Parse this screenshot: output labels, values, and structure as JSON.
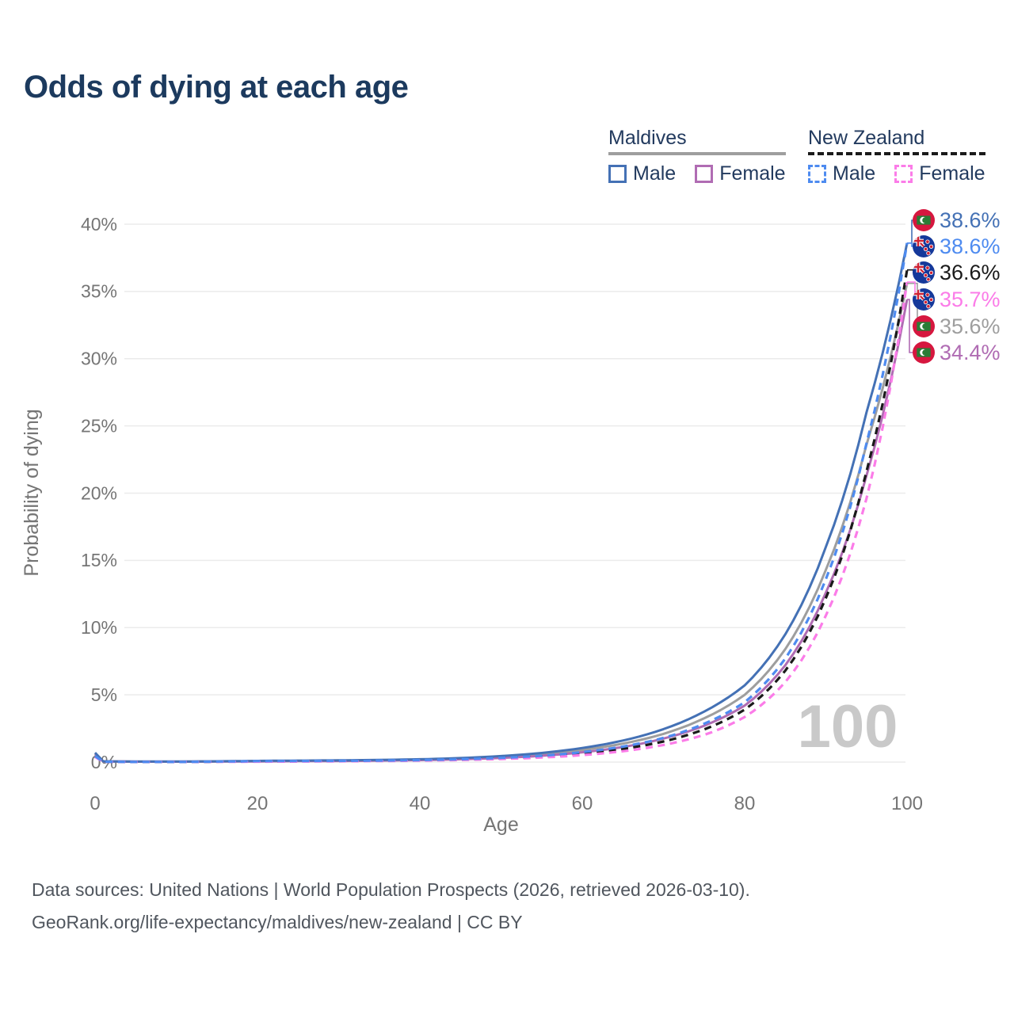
{
  "title": "Odds of dying at each age",
  "legend": {
    "groups": [
      {
        "name": "Maldives",
        "underline_style": "solid",
        "underline_color": "#9e9e9e",
        "items": [
          {
            "label": "Male",
            "color": "#4471b5",
            "line_style": "solid"
          },
          {
            "label": "Female",
            "color": "#b06cb3",
            "line_style": "solid"
          }
        ]
      },
      {
        "name": "New Zealand",
        "underline_style": "dashed",
        "underline_color": "#1a1a1a",
        "items": [
          {
            "label": "Male",
            "color": "#4e8bf0",
            "line_style": "dashed"
          },
          {
            "label": "Female",
            "color": "#fb7ce8",
            "line_style": "dashed"
          }
        ]
      }
    ]
  },
  "chart_data": {
    "type": "line",
    "title": "Odds of dying at each age",
    "xlabel": "Age",
    "ylabel": "Probability of dying",
    "xlim": [
      0,
      100
    ],
    "ylim": [
      0,
      40
    ],
    "grid": "horizontal",
    "legend_position": "top-right",
    "watermark": "100",
    "x_ticks": [
      {
        "v": 0,
        "label": "0"
      },
      {
        "v": 20,
        "label": "20"
      },
      {
        "v": 40,
        "label": "40"
      },
      {
        "v": 60,
        "label": "60"
      },
      {
        "v": 80,
        "label": "80"
      },
      {
        "v": 100,
        "label": "100"
      }
    ],
    "y_ticks": [
      {
        "v": 0,
        "label": "0%"
      },
      {
        "v": 5,
        "label": "5%"
      },
      {
        "v": 10,
        "label": "10%"
      },
      {
        "v": 15,
        "label": "15%"
      },
      {
        "v": 20,
        "label": "20%"
      },
      {
        "v": 25,
        "label": "25%"
      },
      {
        "v": 30,
        "label": "30%"
      },
      {
        "v": 35,
        "label": "35%"
      },
      {
        "v": 40,
        "label": "40%"
      }
    ],
    "ages": [
      0,
      1,
      5,
      10,
      15,
      20,
      25,
      30,
      35,
      40,
      45,
      50,
      55,
      60,
      65,
      70,
      75,
      80,
      85,
      90,
      95,
      100
    ],
    "series": [
      {
        "name": "Maldives Both sexes",
        "country": "Maldives",
        "sex": "Both",
        "flag": "maldives",
        "color": "#9e9e9e",
        "line_style": "solid",
        "end_label": "35.6%",
        "label_row": 4,
        "values": [
          0.63,
          0.05,
          0.03,
          0.03,
          0.05,
          0.07,
          0.09,
          0.11,
          0.13,
          0.18,
          0.26,
          0.38,
          0.58,
          0.9,
          1.37,
          2.1,
          3.25,
          5.0,
          8.4,
          14.3,
          23.6,
          35.6
        ]
      },
      {
        "name": "Maldives Female",
        "country": "Maldives",
        "sex": "Female",
        "flag": "maldives",
        "color": "#b06cb3",
        "line_style": "solid",
        "end_label": "34.4%",
        "label_row": 5,
        "values": [
          0.55,
          0.05,
          0.03,
          0.03,
          0.04,
          0.05,
          0.07,
          0.08,
          0.11,
          0.15,
          0.21,
          0.31,
          0.47,
          0.73,
          1.12,
          1.75,
          2.7,
          4.2,
          7.2,
          12.6,
          21.3,
          34.4
        ]
      },
      {
        "name": "Maldives Male",
        "country": "Maldives",
        "sex": "Male",
        "flag": "maldives",
        "color": "#4471b5",
        "line_style": "solid",
        "end_label": "38.6%",
        "label_row": 0,
        "values": [
          0.7,
          0.06,
          0.04,
          0.04,
          0.06,
          0.09,
          0.11,
          0.13,
          0.16,
          0.21,
          0.3,
          0.45,
          0.68,
          1.05,
          1.6,
          2.45,
          3.75,
          5.7,
          9.5,
          16.0,
          26.0,
          38.6
        ]
      },
      {
        "name": "New Zealand Both sexes",
        "country": "New Zealand",
        "sex": "Both",
        "flag": "new-zealand",
        "color": "#1a1a1a",
        "line_style": "dashed",
        "end_label": "36.6%",
        "label_row": 2,
        "values": [
          0.42,
          0.03,
          0.01,
          0.01,
          0.03,
          0.05,
          0.06,
          0.08,
          0.1,
          0.13,
          0.19,
          0.27,
          0.4,
          0.63,
          0.98,
          1.53,
          2.43,
          3.9,
          6.8,
          12.2,
          21.6,
          36.6
        ]
      },
      {
        "name": "New Zealand Female",
        "country": "New Zealand",
        "sex": "Female",
        "flag": "new-zealand",
        "color": "#fb7ce8",
        "line_style": "dashed",
        "end_label": "35.7%",
        "label_row": 3,
        "values": [
          0.38,
          0.02,
          0.01,
          0.01,
          0.02,
          0.03,
          0.04,
          0.06,
          0.08,
          0.11,
          0.16,
          0.23,
          0.34,
          0.52,
          0.81,
          1.27,
          2.02,
          3.35,
          5.95,
          10.9,
          19.6,
          35.7
        ]
      },
      {
        "name": "New Zealand Male",
        "country": "New Zealand",
        "sex": "Male",
        "flag": "new-zealand",
        "color": "#4e8bf0",
        "line_style": "dashed",
        "end_label": "38.6%",
        "label_row": 1,
        "values": [
          0.45,
          0.03,
          0.01,
          0.01,
          0.04,
          0.07,
          0.08,
          0.09,
          0.11,
          0.15,
          0.21,
          0.31,
          0.47,
          0.74,
          1.15,
          1.8,
          2.85,
          4.45,
          7.7,
          13.6,
          23.7,
          38.6
        ]
      }
    ],
    "colors": {
      "grid": "#ebebeb",
      "tick_text": "#757575",
      "watermark": "#c9c9c9",
      "maldives_flag_red": "#d6173f",
      "maldives_flag_green": "#2a7d36",
      "nz_flag_navy": "#15389a",
      "nz_flag_red": "#cf2233"
    }
  },
  "footer": {
    "line1": "Data sources: United Nations | World Population Prospects (2026, retrieved 2026-03-10).",
    "line2": "GeoRank.org/life-expectancy/maldives/new-zealand | CC BY"
  }
}
